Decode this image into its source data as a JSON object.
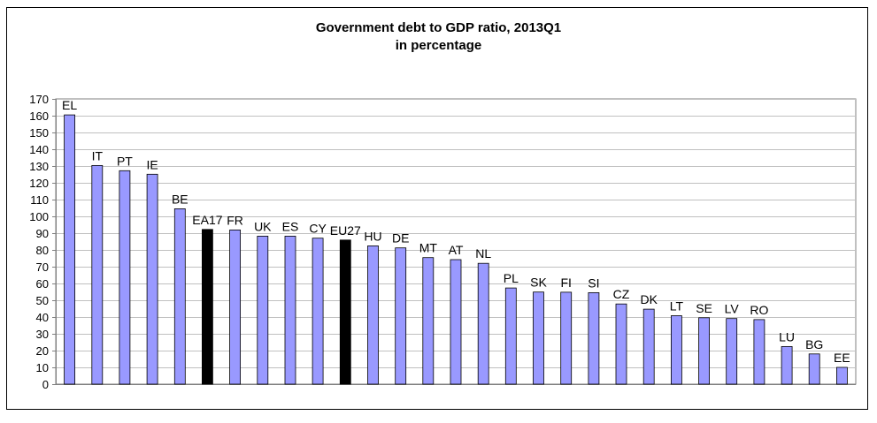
{
  "chart_data": {
    "type": "bar",
    "title": "Government debt to GDP ratio, 2013Q1",
    "subtitle": "in percentage",
    "xlabel": "",
    "ylabel": "",
    "ylim": [
      0,
      170
    ],
    "ytick_step": 10,
    "grid": true,
    "legend": "none",
    "categories": [
      "EL",
      "IT",
      "PT",
      "IE",
      "BE",
      "EA17",
      "FR",
      "UK",
      "ES",
      "CY",
      "EU27",
      "HU",
      "DE",
      "MT",
      "AT",
      "NL",
      "PL",
      "SK",
      "FI",
      "SI",
      "CZ",
      "DK",
      "LT",
      "SE",
      "LV",
      "RO",
      "LU",
      "BG",
      "EE"
    ],
    "values": [
      160.5,
      130.3,
      127.2,
      125.1,
      104.5,
      92.2,
      91.9,
      88.2,
      88.2,
      87.0,
      85.9,
      82.4,
      81.2,
      75.4,
      74.2,
      72.0,
      57.3,
      54.9,
      54.8,
      54.5,
      47.8,
      44.7,
      40.8,
      39.6,
      39.1,
      38.5,
      22.4,
      18.0,
      10.0
    ],
    "highlight": [
      "EA17",
      "EU27"
    ],
    "colors": {
      "bar": "#9999ff",
      "highlight": "#000000",
      "outline": "#000000",
      "grid": "#c0c0c0",
      "axis": "#808080"
    }
  }
}
